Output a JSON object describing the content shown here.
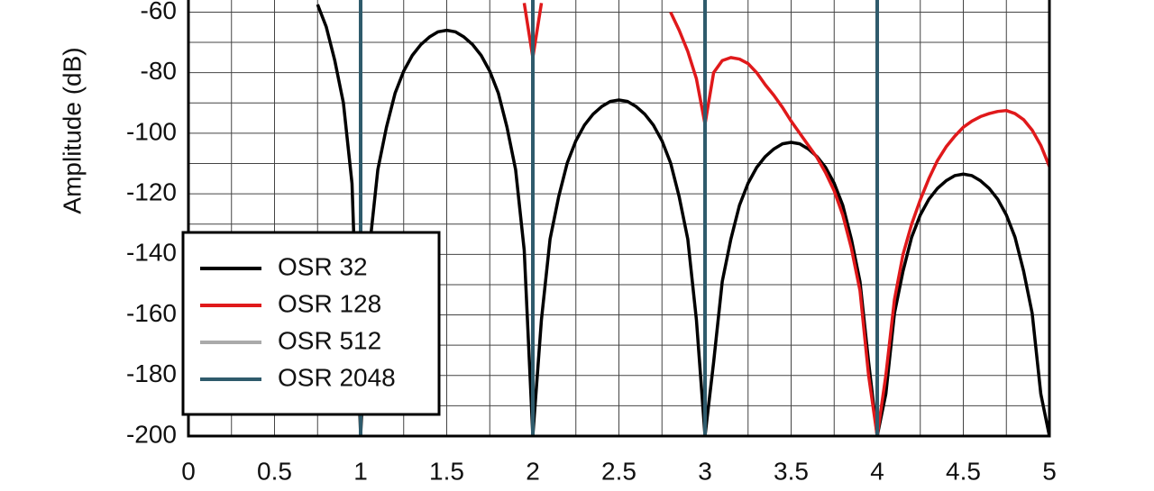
{
  "chart_data": {
    "type": "line",
    "y_label": "Amplitude (dB)",
    "x": [
      0,
      0.05,
      0.1,
      0.15,
      0.2,
      0.25,
      0.3,
      0.35,
      0.4,
      0.45,
      0.5,
      0.55,
      0.6,
      0.65,
      0.7,
      0.75,
      0.8,
      0.85,
      0.9,
      0.95,
      1,
      1.05,
      1.1,
      1.15,
      1.2,
      1.25,
      1.3,
      1.35,
      1.4,
      1.45,
      1.5,
      1.55,
      1.6,
      1.65,
      1.7,
      1.75,
      1.8,
      1.85,
      1.9,
      1.95,
      2,
      2.05,
      2.1,
      2.15,
      2.2,
      2.25,
      2.3,
      2.35,
      2.4,
      2.45,
      2.5,
      2.55,
      2.6,
      2.65,
      2.7,
      2.75,
      2.8,
      2.85,
      2.9,
      2.95,
      3,
      3.05,
      3.1,
      3.15,
      3.2,
      3.25,
      3.3,
      3.35,
      3.4,
      3.45,
      3.5,
      3.55,
      3.6,
      3.65,
      3.7,
      3.75,
      3.8,
      3.85,
      3.9,
      3.95,
      4,
      4.05,
      4.1,
      4.15,
      4.2,
      4.25,
      4.3,
      4.35,
      4.4,
      4.45,
      4.5,
      4.55,
      4.6,
      4.65,
      4.7,
      4.75,
      4.8,
      4.85,
      4.9,
      4.95,
      5
    ],
    "series": [
      {
        "name": "OSR 32",
        "color": "#000000",
        "values": [
          null,
          null,
          null,
          null,
          null,
          null,
          null,
          null,
          null,
          null,
          null,
          null,
          null,
          null,
          null,
          -57.5,
          -64.8,
          -76,
          -90,
          -116.6,
          -200,
          -138.6,
          -112,
          -98,
          -86.8,
          -79.5,
          -74.3,
          -70.7,
          -68.2,
          -66.5,
          -66,
          -66.5,
          -68.2,
          -70.7,
          -74.3,
          -79.5,
          -86.8,
          -98,
          -112,
          -138.6,
          -200,
          -161.6,
          -135,
          -121,
          -109.8,
          -102.5,
          -97.3,
          -93.7,
          -91.2,
          -89.5,
          -89,
          -89.5,
          -91.2,
          -93.7,
          -97.3,
          -102.5,
          -109.8,
          -121,
          -135,
          -161.6,
          -200,
          -175.6,
          -149,
          -135,
          -123.8,
          -116.5,
          -111.3,
          -107.7,
          -105.2,
          -103.5,
          -103,
          -103.5,
          -105.2,
          -107.7,
          -111.3,
          -116.5,
          -123.8,
          -135,
          -149,
          -175.6,
          -200,
          -186.1,
          -159.5,
          -145.5,
          -134.3,
          -127,
          -121.8,
          -118.2,
          -115.7,
          -114,
          -113.5,
          -114,
          -115.7,
          -118.2,
          -121.8,
          -127,
          -134.3,
          -145.5,
          -159.5,
          -186.1,
          -200
        ]
      },
      {
        "name": "OSR 128",
        "color": "#e0191b",
        "values": [
          null,
          null,
          null,
          null,
          null,
          null,
          null,
          null,
          null,
          null,
          null,
          null,
          null,
          null,
          null,
          null,
          null,
          null,
          null,
          null,
          null,
          null,
          null,
          null,
          null,
          null,
          null,
          null,
          null,
          null,
          null,
          null,
          null,
          null,
          null,
          null,
          null,
          null,
          null,
          -57,
          -75,
          -57,
          null,
          null,
          null,
          null,
          null,
          null,
          null,
          null,
          null,
          null,
          null,
          null,
          null,
          null,
          -60,
          -66,
          -73,
          -82,
          -97,
          -80,
          -76,
          -75,
          -75.5,
          -77,
          -80,
          -84,
          -87.5,
          -91.5,
          -96,
          -100,
          -104,
          -108,
          -113,
          -119,
          -127,
          -138,
          -152,
          -180,
          -200,
          -180,
          -155,
          -140,
          -130,
          -122,
          -115,
          -109,
          -104.5,
          -101,
          -98,
          -96,
          -94.5,
          -93.5,
          -92.8,
          -92.5,
          -93.5,
          -95.5,
          -99,
          -104,
          -111
        ]
      },
      {
        "name": "OSR 512",
        "color": "#aaaaaa",
        "x": [
          1,
          1,
          1,
          2,
          2,
          2,
          3,
          3,
          3,
          4,
          4
        ],
        "values": [
          -56,
          -200,
          null,
          -56,
          -200,
          null,
          -56,
          -200,
          null,
          -56,
          -200
        ]
      },
      {
        "name": "OSR 2048",
        "color": "#2f5b6c",
        "x": [
          1,
          1,
          1,
          2,
          2,
          2,
          3,
          3,
          3,
          4,
          4
        ],
        "values": [
          -56,
          -200,
          null,
          -56,
          -200,
          null,
          -56,
          -200,
          null,
          -56,
          -200
        ]
      }
    ],
    "xlim": [
      0,
      5
    ],
    "ylim": [
      -200,
      -56
    ],
    "xticks": [
      0,
      0.5,
      1,
      1.5,
      2,
      2.5,
      3,
      3.5,
      4,
      4.5,
      5
    ],
    "yticks": [
      -200,
      -180,
      -160,
      -140,
      -120,
      -100,
      -80,
      -60
    ],
    "xminorticks": [
      0.25,
      0.75,
      1.25,
      1.75,
      2.25,
      2.75,
      3.25,
      3.75,
      4.25,
      4.75
    ],
    "yminorticks": [
      -190,
      -170,
      -150,
      -130,
      -110,
      -90,
      -70
    ],
    "grid": true,
    "legend": "lower left"
  }
}
